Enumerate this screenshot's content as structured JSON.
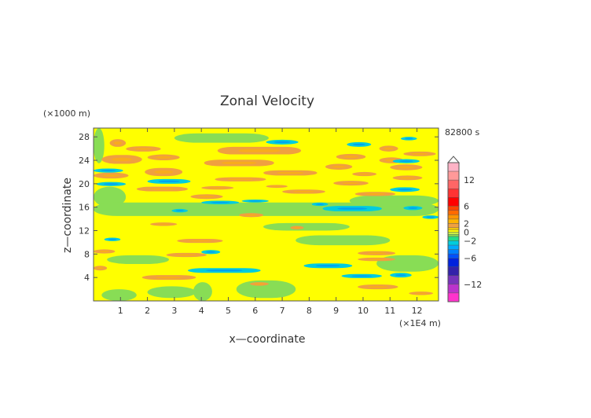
{
  "chart_data": {
    "type": "heatmap",
    "title": "Zonal Velocity",
    "time_label": "82800 s",
    "xlabel": "x—coordinate",
    "ylabel": "z—coordinate",
    "x_unit": "(×1E4 m)",
    "y_unit": "(×1000 m)",
    "xlim": [
      0,
      12.8
    ],
    "ylim": [
      0,
      29.5
    ],
    "xticks": [
      {
        "value": 1,
        "label": "1"
      },
      {
        "value": 2,
        "label": "2"
      },
      {
        "value": 3,
        "label": "3"
      },
      {
        "value": 4,
        "label": "4"
      },
      {
        "value": 5,
        "label": "5"
      },
      {
        "value": 6,
        "label": "6"
      },
      {
        "value": 7,
        "label": "7"
      },
      {
        "value": 8,
        "label": "8"
      },
      {
        "value": 9,
        "label": "9"
      },
      {
        "value": 10,
        "label": "10"
      },
      {
        "value": 11,
        "label": "11"
      },
      {
        "value": 12,
        "label": "12"
      }
    ],
    "yticks": [
      {
        "value": 4,
        "label": "4"
      },
      {
        "value": 8,
        "label": "8"
      },
      {
        "value": 12,
        "label": "12"
      },
      {
        "value": 16,
        "label": "16"
      },
      {
        "value": 20,
        "label": "20"
      },
      {
        "value": 24,
        "label": "24"
      },
      {
        "value": 28,
        "label": "28"
      }
    ],
    "colorbar": {
      "min": -16,
      "max": 16,
      "ticks": [
        {
          "value": 12,
          "label": "12"
        },
        {
          "value": 6,
          "label": "6"
        },
        {
          "value": 2,
          "label": "2"
        },
        {
          "value": 0,
          "label": "0"
        },
        {
          "value": -2,
          "label": "−2"
        },
        {
          "value": -6,
          "label": "−6"
        },
        {
          "value": -12,
          "label": "−12"
        }
      ],
      "levels": [
        {
          "from": 14,
          "to": 16,
          "color": "#ffb3c6"
        },
        {
          "from": 12,
          "to": 14,
          "color": "#ff9999"
        },
        {
          "from": 10,
          "to": 12,
          "color": "#ff6666"
        },
        {
          "from": 8,
          "to": 10,
          "color": "#ff3333"
        },
        {
          "from": 6,
          "to": 8,
          "color": "#ff0000"
        },
        {
          "from": 5,
          "to": 6,
          "color": "#ff4400"
        },
        {
          "from": 4,
          "to": 5,
          "color": "#ff6a00"
        },
        {
          "from": 3,
          "to": 4,
          "color": "#ff9400"
        },
        {
          "from": 2,
          "to": 3,
          "color": "#ffb400"
        },
        {
          "from": 1,
          "to": 2,
          "color": "#f0a040"
        },
        {
          "from": 0.5,
          "to": 1,
          "color": "#ffd200"
        },
        {
          "from": 0,
          "to": 0.5,
          "color": "#ffff00"
        },
        {
          "from": -0.5,
          "to": 0,
          "color": "#ccee44"
        },
        {
          "from": -1,
          "to": -0.5,
          "color": "#88dd55"
        },
        {
          "from": -2,
          "to": -1,
          "color": "#22dd88"
        },
        {
          "from": -3,
          "to": -2,
          "color": "#00ccdd"
        },
        {
          "from": -4,
          "to": -3,
          "color": "#00aaff"
        },
        {
          "from": -5,
          "to": -4,
          "color": "#0080ff"
        },
        {
          "from": -6,
          "to": -5,
          "color": "#0050ff"
        },
        {
          "from": -8,
          "to": -6,
          "color": "#0022dd"
        },
        {
          "from": -10,
          "to": -8,
          "color": "#3322aa"
        },
        {
          "from": -12,
          "to": -10,
          "color": "#7733bb"
        },
        {
          "from": -14,
          "to": -12,
          "color": "#bb33cc"
        },
        {
          "from": -16,
          "to": -14,
          "color": "#ff33cc"
        }
      ]
    },
    "background_value": 0.2,
    "green_regions": [
      {
        "x0": 0.0,
        "x1": 0.4,
        "y0": 23.5,
        "y1": 29.5,
        "v": -0.6
      },
      {
        "x0": 0.3,
        "x1": 1.6,
        "y0": 0.0,
        "y1": 2.0,
        "v": -0.6
      },
      {
        "x0": 0.0,
        "x1": 1.2,
        "y0": 16.0,
        "y1": 19.5,
        "v": -0.6
      },
      {
        "x0": 3.7,
        "x1": 4.4,
        "y0": 0.0,
        "y1": 3.2,
        "v": -0.7
      },
      {
        "x0": 2.0,
        "x1": 3.8,
        "y0": 0.5,
        "y1": 2.5,
        "v": -0.6
      },
      {
        "x0": 5.3,
        "x1": 7.5,
        "y0": 0.5,
        "y1": 3.5,
        "v": -0.6
      },
      {
        "x0": 0.0,
        "x1": 12.8,
        "y0": 14.5,
        "y1": 16.8,
        "v": -0.6
      },
      {
        "x0": 7.5,
        "x1": 11.0,
        "y0": 9.5,
        "y1": 11.2,
        "v": -0.6
      },
      {
        "x0": 3.0,
        "x1": 6.5,
        "y0": 27.0,
        "y1": 28.6,
        "v": -0.6
      },
      {
        "x0": 10.5,
        "x1": 12.8,
        "y0": 5.0,
        "y1": 7.8,
        "v": -0.6
      },
      {
        "x0": 0.5,
        "x1": 2.8,
        "y0": 6.3,
        "y1": 7.8,
        "v": -0.6
      },
      {
        "x0": 6.3,
        "x1": 9.5,
        "y0": 12.0,
        "y1": 13.3,
        "v": -0.6
      },
      {
        "x0": 9.5,
        "x1": 12.8,
        "y0": 16.2,
        "y1": 18.0,
        "v": -0.6
      }
    ],
    "positive_bands": [
      {
        "x0": 0.6,
        "x1": 1.2,
        "y0": 26.3,
        "y1": 27.6,
        "v": 1.6
      },
      {
        "x0": 0.3,
        "x1": 1.8,
        "y0": 23.4,
        "y1": 24.9,
        "v": 1.6
      },
      {
        "x0": 0.0,
        "x1": 1.3,
        "y0": 20.9,
        "y1": 21.9,
        "v": 1.6
      },
      {
        "x0": 1.2,
        "x1": 2.5,
        "y0": 25.5,
        "y1": 26.4,
        "v": 1.6
      },
      {
        "x0": 2.0,
        "x1": 3.2,
        "y0": 24.0,
        "y1": 25.0,
        "v": 1.6
      },
      {
        "x0": 1.9,
        "x1": 3.3,
        "y0": 21.3,
        "y1": 22.7,
        "v": 1.6
      },
      {
        "x0": 1.6,
        "x1": 3.5,
        "y0": 18.7,
        "y1": 19.5,
        "v": 1.6
      },
      {
        "x0": 4.6,
        "x1": 7.7,
        "y0": 25.0,
        "y1": 26.3,
        "v": 1.6
      },
      {
        "x0": 4.1,
        "x1": 6.7,
        "y0": 23.0,
        "y1": 24.1,
        "v": 1.6
      },
      {
        "x0": 4.5,
        "x1": 6.4,
        "y0": 20.4,
        "y1": 21.1,
        "v": 1.6
      },
      {
        "x0": 6.3,
        "x1": 8.3,
        "y0": 21.4,
        "y1": 22.3,
        "v": 1.6
      },
      {
        "x0": 6.4,
        "x1": 7.2,
        "y0": 19.3,
        "y1": 19.8,
        "v": 1.6
      },
      {
        "x0": 7.0,
        "x1": 8.6,
        "y0": 18.3,
        "y1": 19.0,
        "v": 1.6
      },
      {
        "x0": 8.6,
        "x1": 9.6,
        "y0": 22.4,
        "y1": 23.4,
        "v": 1.6
      },
      {
        "x0": 9.0,
        "x1": 10.1,
        "y0": 24.1,
        "y1": 25.1,
        "v": 1.6
      },
      {
        "x0": 10.6,
        "x1": 11.3,
        "y0": 25.5,
        "y1": 26.5,
        "v": 1.6
      },
      {
        "x0": 10.6,
        "x1": 11.5,
        "y0": 23.5,
        "y1": 24.5,
        "v": 1.6
      },
      {
        "x0": 11.0,
        "x1": 12.2,
        "y0": 22.3,
        "y1": 23.3,
        "v": 1.6
      },
      {
        "x0": 11.5,
        "x1": 12.7,
        "y0": 24.7,
        "y1": 25.5,
        "v": 1.6
      },
      {
        "x0": 9.6,
        "x1": 10.5,
        "y0": 21.3,
        "y1": 22.0,
        "v": 1.6
      },
      {
        "x0": 8.9,
        "x1": 10.2,
        "y0": 19.7,
        "y1": 20.5,
        "v": 1.6
      },
      {
        "x0": 11.1,
        "x1": 12.2,
        "y0": 20.6,
        "y1": 21.4,
        "v": 1.6
      },
      {
        "x0": 9.7,
        "x1": 11.2,
        "y0": 17.9,
        "y1": 18.6,
        "v": 1.6
      },
      {
        "x0": 3.6,
        "x1": 4.8,
        "y0": 17.4,
        "y1": 18.2,
        "v": 1.6
      },
      {
        "x0": 5.4,
        "x1": 6.3,
        "y0": 14.3,
        "y1": 15.0,
        "v": 1.6
      },
      {
        "x0": 2.1,
        "x1": 3.1,
        "y0": 12.8,
        "y1": 13.4,
        "v": 1.6
      },
      {
        "x0": 7.3,
        "x1": 7.8,
        "y0": 12.2,
        "y1": 12.8,
        "v": 1.6
      },
      {
        "x0": 3.1,
        "x1": 4.8,
        "y0": 9.9,
        "y1": 10.6,
        "v": 1.6
      },
      {
        "x0": 0.0,
        "x1": 0.8,
        "y0": 8.1,
        "y1": 8.8,
        "v": 1.6
      },
      {
        "x0": 2.7,
        "x1": 4.2,
        "y0": 7.5,
        "y1": 8.2,
        "v": 1.6
      },
      {
        "x0": 9.8,
        "x1": 11.2,
        "y0": 7.8,
        "y1": 8.5,
        "v": 1.6
      },
      {
        "x0": 9.8,
        "x1": 11.2,
        "y0": 6.8,
        "y1": 7.4,
        "v": 1.6
      },
      {
        "x0": 0.0,
        "x1": 0.5,
        "y0": 5.2,
        "y1": 6.0,
        "v": 1.6
      },
      {
        "x0": 1.8,
        "x1": 3.8,
        "y0": 3.6,
        "y1": 4.4,
        "v": 1.6
      },
      {
        "x0": 5.8,
        "x1": 6.5,
        "y0": 2.6,
        "y1": 3.2,
        "v": 1.6
      },
      {
        "x0": 9.8,
        "x1": 11.3,
        "y0": 2.0,
        "y1": 2.8,
        "v": 1.6
      },
      {
        "x0": 11.7,
        "x1": 12.6,
        "y0": 1.0,
        "y1": 1.6,
        "v": 1.6
      },
      {
        "x0": 4.0,
        "x1": 5.2,
        "y0": 19.0,
        "y1": 19.6,
        "v": 1.6
      }
    ],
    "negative_bands": [
      {
        "x0": 0.0,
        "x1": 1.1,
        "y0": 21.9,
        "y1": 22.6,
        "v": -2.5
      },
      {
        "x0": 2.0,
        "x1": 3.6,
        "y0": 20.0,
        "y1": 20.8,
        "v": -2.5
      },
      {
        "x0": 0.1,
        "x1": 1.2,
        "y0": 19.6,
        "y1": 20.3,
        "v": -2.5
      },
      {
        "x0": 6.4,
        "x1": 7.6,
        "y0": 26.7,
        "y1": 27.5,
        "v": -2.5
      },
      {
        "x0": 4.0,
        "x1": 5.4,
        "y0": 16.5,
        "y1": 17.1,
        "v": -2.5
      },
      {
        "x0": 8.1,
        "x1": 8.7,
        "y0": 16.2,
        "y1": 16.8,
        "v": -2.5
      },
      {
        "x0": 8.5,
        "x1": 10.7,
        "y0": 15.3,
        "y1": 16.2,
        "v": -2.5
      },
      {
        "x0": 9.4,
        "x1": 10.3,
        "y0": 26.3,
        "y1": 27.1,
        "v": -2.5
      },
      {
        "x0": 11.0,
        "x1": 12.1,
        "y0": 18.6,
        "y1": 19.4,
        "v": -2.5
      },
      {
        "x0": 11.1,
        "x1": 12.1,
        "y0": 23.5,
        "y1": 24.2,
        "v": -2.5
      },
      {
        "x0": 0.4,
        "x1": 1.0,
        "y0": 10.2,
        "y1": 10.8,
        "v": -2.5
      },
      {
        "x0": 4.0,
        "x1": 4.7,
        "y0": 8.0,
        "y1": 8.7,
        "v": -2.5
      },
      {
        "x0": 3.5,
        "x1": 6.2,
        "y0": 4.8,
        "y1": 5.6,
        "v": -2.5
      },
      {
        "x0": 7.8,
        "x1": 9.6,
        "y0": 5.6,
        "y1": 6.4,
        "v": -2.5
      },
      {
        "x0": 9.2,
        "x1": 10.7,
        "y0": 3.9,
        "y1": 4.6,
        "v": -2.5
      },
      {
        "x0": 11.0,
        "x1": 11.8,
        "y0": 4.0,
        "y1": 4.8,
        "v": -2.5
      },
      {
        "x0": 11.5,
        "x1": 12.2,
        "y0": 15.5,
        "y1": 16.2,
        "v": -2.5
      },
      {
        "x0": 2.9,
        "x1": 3.5,
        "y0": 15.1,
        "y1": 15.7,
        "v": -2.5
      },
      {
        "x0": 11.4,
        "x1": 12.0,
        "y0": 27.4,
        "y1": 28.0,
        "v": -2.5
      },
      {
        "x0": 5.5,
        "x1": 6.5,
        "y0": 16.8,
        "y1": 17.3,
        "v": -2.5
      },
      {
        "x0": 12.2,
        "x1": 12.8,
        "y0": 14.0,
        "y1": 14.6,
        "v": -2.5
      }
    ]
  }
}
